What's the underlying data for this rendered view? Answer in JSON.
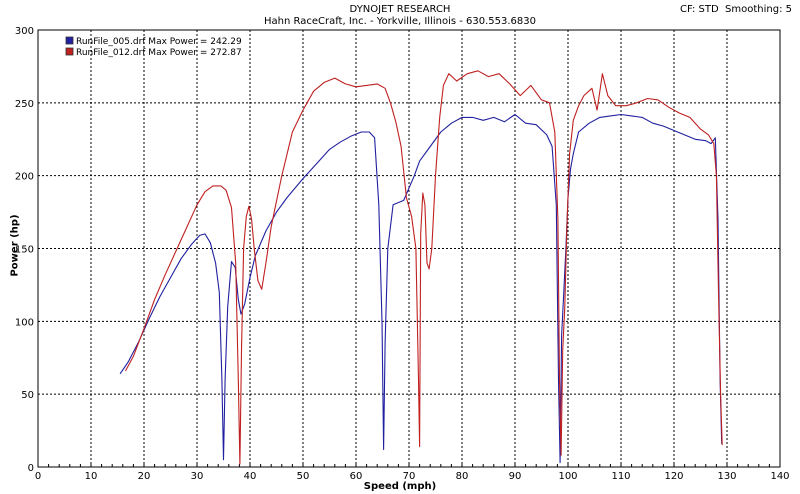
{
  "header": {
    "title": "DYNOJET RESEARCH",
    "subtitle": "Hahn RaceCraft, Inc. - Yorkville, Illinois - 630.553.6830",
    "cf_info": "CF: STD  Smoothing: 5"
  },
  "chart_data": {
    "type": "line",
    "xlabel": "Speed (mph)",
    "ylabel": "Power (hp)",
    "xlim": [
      0,
      140
    ],
    "ylim": [
      0,
      300
    ],
    "xticks": [
      0,
      10,
      20,
      30,
      40,
      50,
      60,
      70,
      80,
      90,
      100,
      110,
      120,
      130,
      140
    ],
    "yticks": [
      0,
      50,
      100,
      150,
      200,
      250,
      300
    ],
    "grid": true,
    "legend_position": "top-left",
    "series": [
      {
        "name": "RunFile_005.drf Max Power = 242.29",
        "color": "#2020a0",
        "x": [
          15.5,
          17,
          19,
          21,
          23,
          25,
          27,
          29,
          30.5,
          31.5,
          32.5,
          33.5,
          34.2,
          34.7,
          35.0,
          35.3,
          35.8,
          36.5,
          37.2,
          37.8,
          38.3,
          39,
          40,
          41,
          43,
          45,
          47,
          50,
          53,
          55,
          57,
          59,
          61,
          62.5,
          63.5,
          64.3,
          64.9,
          65.2,
          65.5,
          66,
          67,
          69,
          71,
          72,
          74,
          76,
          78,
          80,
          82,
          84,
          86,
          88,
          90,
          92,
          94,
          96,
          97,
          97.8,
          98.2,
          98.5,
          98.8,
          99.2,
          99.6,
          100,
          100.5,
          101,
          102,
          104,
          106,
          108,
          110,
          112,
          114,
          116,
          118,
          120,
          122,
          124,
          126,
          127,
          127.8,
          128.3,
          128.7,
          129
        ],
        "y": [
          64,
          72,
          86,
          102,
          117,
          130,
          143,
          153,
          159,
          160,
          154,
          140,
          120,
          60,
          5,
          60,
          110,
          141,
          137,
          115,
          105,
          112,
          130,
          145,
          162,
          175,
          185,
          198,
          210,
          218,
          223,
          227,
          230,
          230,
          226,
          180,
          100,
          12,
          85,
          150,
          180,
          183,
          200,
          210,
          220,
          230,
          236,
          240,
          240,
          238,
          240,
          237,
          242,
          236,
          235,
          228,
          220,
          180,
          60,
          3,
          90,
          120,
          150,
          185,
          205,
          215,
          230,
          236,
          240,
          241,
          242,
          241,
          240,
          236,
          234,
          231,
          228,
          225,
          224,
          222,
          226,
          170,
          60,
          16
        ]
      },
      {
        "name": "RunFile_012.drf Max Power = 272.87",
        "color": "#c02020",
        "x": [
          16.5,
          18,
          20,
          22,
          24,
          26,
          28,
          30,
          31.5,
          33,
          34.5,
          35.5,
          36.5,
          37.3,
          37.8,
          38.1,
          38.4,
          38.8,
          39.3,
          39.8,
          40.3,
          40.8,
          41.5,
          42.2,
          43,
          44,
          46,
          48,
          50,
          52,
          54,
          56,
          58,
          60,
          62,
          64,
          65.5,
          66.5,
          67.5,
          68.5,
          69.5,
          70.5,
          71.3,
          71.8,
          72.0,
          72.2,
          72.6,
          73.0,
          73.4,
          73.8,
          74.3,
          75,
          75.8,
          76.5,
          77.5,
          79,
          81,
          83,
          85,
          87,
          89,
          91,
          93,
          95,
          96.5,
          97.5,
          98.1,
          98.4,
          98.7,
          99.0,
          99.4,
          99.8,
          100.3,
          101,
          102,
          103,
          104.5,
          105.5,
          106.5,
          107.5,
          109,
          111,
          113,
          115,
          117,
          119,
          121,
          123,
          125,
          126.5,
          127.5,
          128,
          128.4,
          128.8,
          129.1
        ],
        "y": [
          66,
          76,
          95,
          115,
          132,
          148,
          164,
          180,
          189,
          193,
          193,
          190,
          178,
          140,
          60,
          2,
          80,
          150,
          172,
          179,
          170,
          150,
          128,
          122,
          140,
          165,
          200,
          230,
          245,
          258,
          264,
          267,
          263,
          261,
          262,
          263,
          260,
          250,
          237,
          220,
          185,
          172,
          150,
          60,
          14,
          160,
          188,
          180,
          140,
          136,
          150,
          200,
          240,
          262,
          270,
          265,
          270,
          272,
          268,
          270,
          263,
          255,
          262,
          252,
          250,
          230,
          170,
          60,
          8,
          80,
          110,
          165,
          215,
          238,
          248,
          255,
          260,
          245,
          270,
          255,
          248,
          248,
          250,
          253,
          252,
          247,
          243,
          240,
          232,
          228,
          222,
          200,
          120,
          50,
          15
        ]
      }
    ]
  }
}
